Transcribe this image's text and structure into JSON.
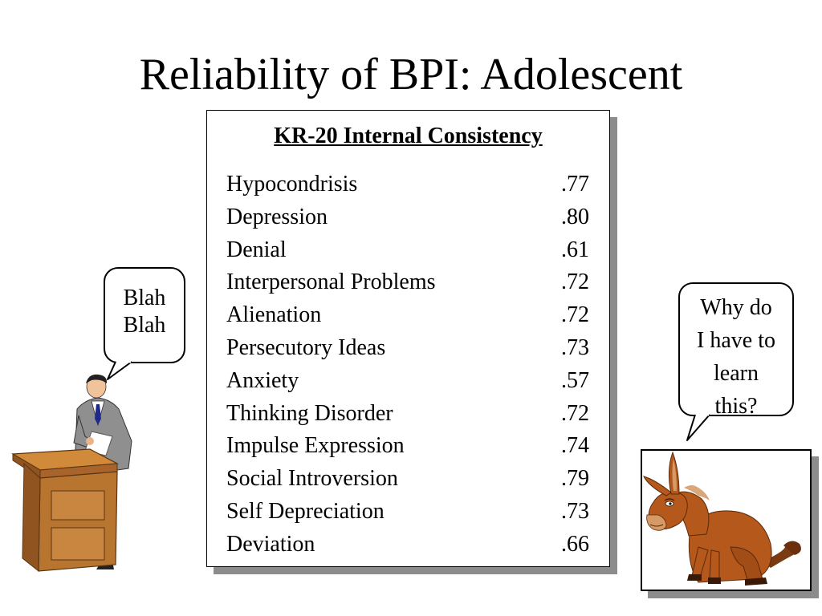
{
  "slide": {
    "title": "Reliability of BPI: Adolescent"
  },
  "table": {
    "heading": "KR-20 Internal Consistency",
    "rows": [
      {
        "scale": "Hypocondrisis",
        "value": ".77"
      },
      {
        "scale": "Depression",
        "value": ".80"
      },
      {
        "scale": "Denial",
        "value": ".61"
      },
      {
        "scale": "Interpersonal Problems",
        "value": ".72"
      },
      {
        "scale": "Alienation",
        "value": ".72"
      },
      {
        "scale": "Persecutory Ideas",
        "value": ".73"
      },
      {
        "scale": "Anxiety",
        "value": ".57"
      },
      {
        "scale": "Thinking Disorder",
        "value": ".72"
      },
      {
        "scale": "Impulse Expression",
        "value": ".74"
      },
      {
        "scale": "Social Introversion",
        "value": ".79"
      },
      {
        "scale": "Self Depreciation",
        "value": ".73"
      },
      {
        "scale": "Deviation",
        "value": ".66"
      }
    ]
  },
  "speaker_bubble": {
    "lines": [
      "Blah",
      "Blah"
    ]
  },
  "donkey_bubble": {
    "lines": [
      "Why do",
      "I have to",
      "learn",
      "this?"
    ]
  },
  "illustrations": {
    "speaker": "man-at-podium-clipart",
    "donkey": "sitting-donkey-clipart"
  },
  "colors": {
    "background": "#ffffff",
    "shadow": "#8c8c8c",
    "podium": "#b8752f",
    "suit": "#8a8a8a",
    "donkey": "#b5581c"
  }
}
